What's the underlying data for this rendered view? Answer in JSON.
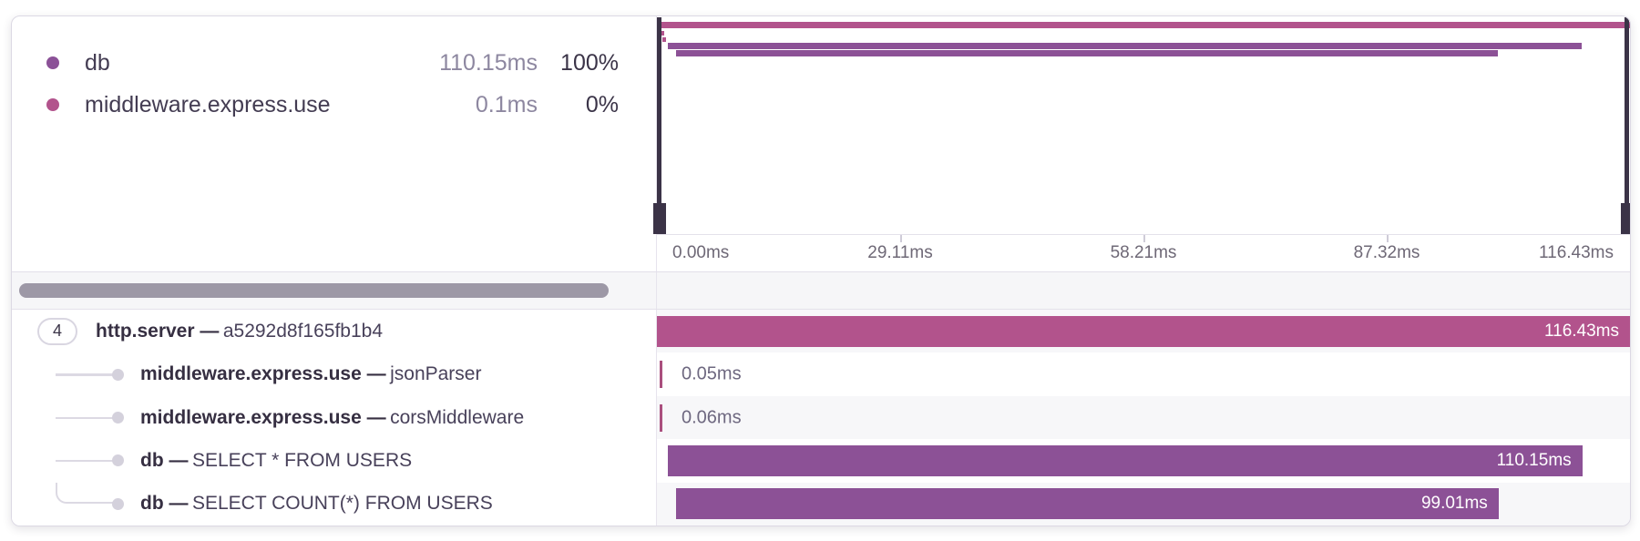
{
  "legend": {
    "items": [
      {
        "name": "db",
        "duration": "110.15ms",
        "percent": "100%",
        "color": "#8b5197"
      },
      {
        "name": "middleware.express.use",
        "duration": "0.1ms",
        "percent": "0%",
        "color": "#b2538c"
      }
    ]
  },
  "minimap": {
    "bars": [
      {
        "left_pct": 0,
        "width_pct": 100,
        "color": "#b2538c"
      },
      {
        "left_pct": 0.45,
        "width_pct": 0.3,
        "color": "#b2538c"
      },
      {
        "left_pct": 0.6,
        "width_pct": 0.3,
        "color": "#b2538c"
      },
      {
        "left_pct": 1.1,
        "width_pct": 93.9,
        "color": "#8c5196"
      },
      {
        "left_pct": 2.0,
        "width_pct": 84.4,
        "color": "#8c5196"
      }
    ]
  },
  "axis": {
    "ticks": [
      "0.00ms",
      "29.11ms",
      "58.21ms",
      "87.32ms",
      "116.43ms"
    ]
  },
  "spans": [
    {
      "count": "4",
      "name": "http.server",
      "dash": "—",
      "detail": "a5292d8f165fb1b4",
      "bar": {
        "label": "116.43ms",
        "left_pct": 0,
        "width_pct": 100,
        "color": "#b2538c"
      }
    },
    {
      "name": "middleware.express.use",
      "dash": "—",
      "detail": "jsonParser",
      "tick": {
        "label": "0.05ms",
        "left_pct": 0.3,
        "color": "#aa4f7e"
      }
    },
    {
      "name": "middleware.express.use",
      "dash": "—",
      "detail": "corsMiddleware",
      "tick": {
        "label": "0.06ms",
        "left_pct": 0.3,
        "color": "#aa4f7e"
      }
    },
    {
      "name": "db",
      "dash": "—",
      "detail": "SELECT * FROM USERS",
      "bar": {
        "label": "110.15ms",
        "left_pct": 1.1,
        "width_pct": 94.0,
        "color": "#8c5196"
      }
    },
    {
      "name": "db",
      "dash": "—",
      "detail": "SELECT COUNT(*) FROM USERS",
      "bar": {
        "label": "99.01ms",
        "left_pct": 2.0,
        "width_pct": 84.5,
        "color": "#8c5196"
      }
    }
  ],
  "colors": {
    "pink": "#b2538c",
    "purple": "#8c5196",
    "handle": "#3b3347",
    "scroll_thumb": "#9d98a6"
  }
}
